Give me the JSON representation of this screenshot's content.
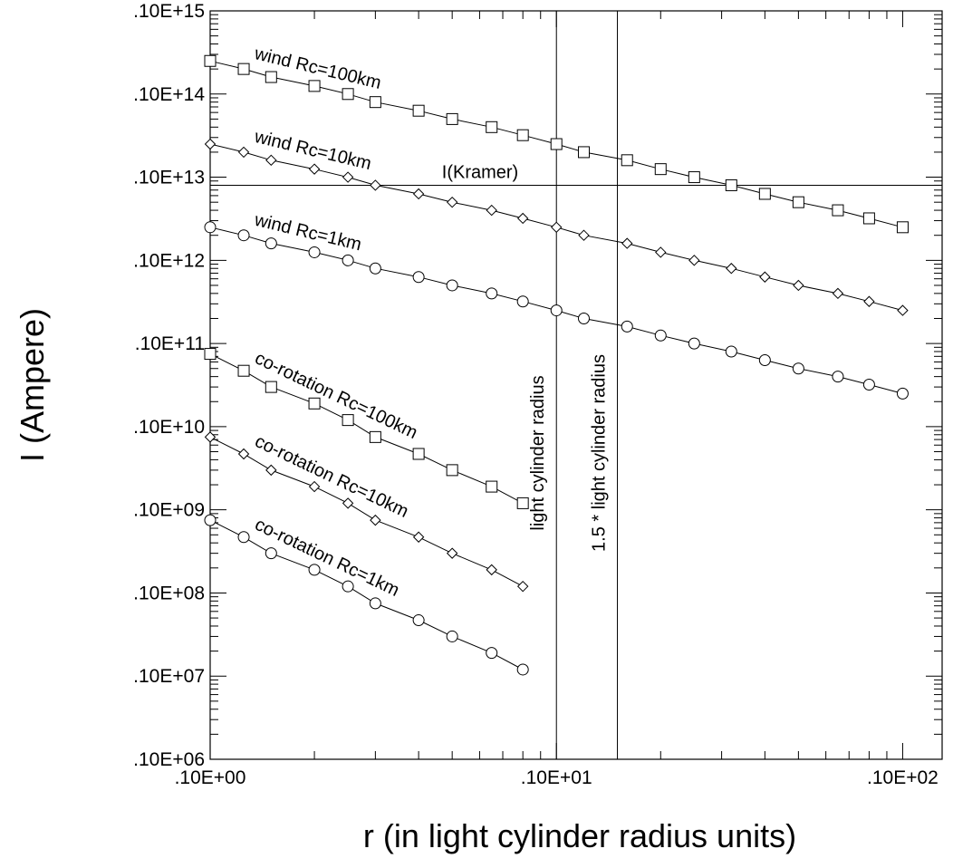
{
  "chart_data": {
    "type": "scatter",
    "xlabel": "r (in light cylinder radius units)",
    "ylabel": "I (Ampere)",
    "x_scale": "log",
    "y_scale": "log",
    "xlim": [
      1,
      130
    ],
    "ylim": [
      1000000,
      1000000000000000
    ],
    "x_ticks": [
      {
        "value": 1,
        "label": ".10E+00"
      },
      {
        "value": 10,
        "label": ".10E+01"
      },
      {
        "value": 100,
        "label": ".10E+02"
      }
    ],
    "y_ticks": [
      {
        "value": 1000000,
        "label": ".10E+06"
      },
      {
        "value": 10000000,
        "label": ".10E+07"
      },
      {
        "value": 100000000,
        "label": ".10E+08"
      },
      {
        "value": 1000000000,
        "label": ".10E+09"
      },
      {
        "value": 10000000000,
        "label": ".10E+10"
      },
      {
        "value": 100000000000,
        "label": ".10E+11"
      },
      {
        "value": 1000000000000,
        "label": ".10E+12"
      },
      {
        "value": 10000000000000,
        "label": ".10E+13"
      },
      {
        "value": 100000000000000,
        "label": ".10E+14"
      },
      {
        "value": 1000000000000000,
        "label": ".10E+15"
      }
    ],
    "grid": false,
    "series": [
      {
        "name": "wind Rc=100km",
        "marker": "square",
        "x": [
          1,
          1.25,
          1.5,
          2,
          2.5,
          3,
          4,
          5,
          6.5,
          8,
          10,
          12,
          16,
          20,
          25,
          32,
          40,
          50,
          65,
          80,
          100
        ],
        "y": [
          250000000000000.0,
          200000000000000.0,
          160000000000000.0,
          125000000000000.0,
          100000000000000.0,
          80000000000000.0,
          63000000000000.0,
          50000000000000.0,
          40000000000000.0,
          32000000000000.0,
          25000000000000.0,
          20000000000000.0,
          16000000000000.0,
          12500000000000.0,
          10000000000000.0,
          8000000000000.0,
          6300000000000.0,
          5000000000000.0,
          4000000000000.0,
          3200000000000.0,
          2500000000000.0
        ]
      },
      {
        "name": "wind Rc=10km",
        "marker": "diamond",
        "x": [
          1,
          1.25,
          1.5,
          2,
          2.5,
          3,
          4,
          5,
          6.5,
          8,
          10,
          12,
          16,
          20,
          25,
          32,
          40,
          50,
          65,
          80,
          100
        ],
        "y": [
          25000000000000.0,
          20000000000000.0,
          16000000000000.0,
          12500000000000.0,
          10000000000000.0,
          8000000000000.0,
          6300000000000.0,
          5000000000000.0,
          4000000000000.0,
          3200000000000.0,
          2500000000000.0,
          2000000000000.0,
          1600000000000.0,
          1250000000000.0,
          1000000000000.0,
          800000000000.0,
          630000000000.0,
          500000000000.0,
          400000000000.0,
          320000000000.0,
          250000000000.0
        ]
      },
      {
        "name": "wind Rc=1km",
        "marker": "circle",
        "x": [
          1,
          1.25,
          1.5,
          2,
          2.5,
          3,
          4,
          5,
          6.5,
          8,
          10,
          12,
          16,
          20,
          25,
          32,
          40,
          50,
          65,
          80,
          100
        ],
        "y": [
          2500000000000.0,
          2000000000000.0,
          1600000000000.0,
          1250000000000.0,
          1000000000000.0,
          800000000000.0,
          630000000000.0,
          500000000000.0,
          400000000000.0,
          320000000000.0,
          250000000000.0,
          200000000000.0,
          160000000000.0,
          125000000000.0,
          100000000000.0,
          80000000000.0,
          63000000000.0,
          50000000000.0,
          40000000000.0,
          32000000000.0,
          25000000000.0
        ]
      },
      {
        "name": "co-rotation Rc=100km",
        "marker": "square",
        "x": [
          1,
          1.25,
          1.5,
          2,
          2.5,
          3,
          4,
          5,
          6.5,
          8
        ],
        "y": [
          75000000000.0,
          47000000000.0,
          30000000000.0,
          19000000000.0,
          12000000000.0,
          7500000000.0,
          4700000000.0,
          3000000000.0,
          1900000000.0,
          1200000000.0
        ]
      },
      {
        "name": "co-rotation Rc=10km",
        "marker": "diamond",
        "x": [
          1,
          1.25,
          1.5,
          2,
          2.5,
          3,
          4,
          5,
          6.5,
          8
        ],
        "y": [
          7500000000.0,
          4700000000.0,
          3000000000.0,
          1900000000.0,
          1200000000.0,
          750000000.0,
          470000000.0,
          300000000.0,
          190000000.0,
          120000000.0
        ]
      },
      {
        "name": "co-rotation Rc=1km",
        "marker": "circle",
        "x": [
          1,
          1.25,
          1.5,
          2,
          2.5,
          3,
          4,
          5,
          6.5,
          8
        ],
        "y": [
          750000000.0,
          470000000.0,
          300000000.0,
          190000000.0,
          120000000.0,
          75000000.0,
          47000000.0,
          30000000.0,
          19000000.0,
          12000000.0
        ]
      }
    ],
    "reference_lines": [
      {
        "orientation": "vertical",
        "x": 10,
        "label": "light cylinder radius"
      },
      {
        "orientation": "vertical",
        "x": 15,
        "label": "1.5 * light cylinder radius"
      },
      {
        "orientation": "horizontal",
        "y": 8000000000000,
        "label": "I(Kramer)"
      }
    ]
  }
}
